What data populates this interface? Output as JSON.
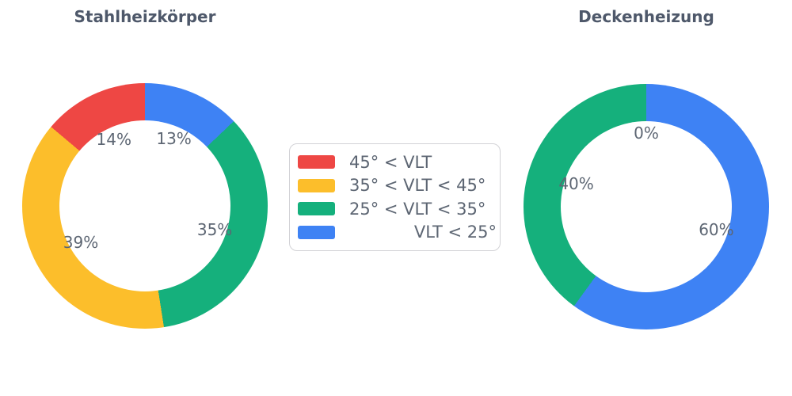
{
  "page": {
    "background": "#ffffff"
  },
  "style": {
    "title_color": "#4e586a",
    "label_color": "#5d6673",
    "legend_border_color": "#d2d2d6",
    "legend_background": "#ffffff"
  },
  "chart_data": [
    {
      "type": "pie",
      "subtype": "donut",
      "title": "Stahlheizkörper",
      "categories": [
        "45° < VLT",
        "35° < VLT < 45°",
        "25° < VLT < 35°",
        "VLT < 25°"
      ],
      "values": [
        14,
        39,
        35,
        13
      ],
      "value_labels": [
        "14%",
        "39%",
        "35%",
        "13%"
      ],
      "colors": [
        "#ee4744",
        "#fcbe2b",
        "#15b07c",
        "#3e82f4"
      ],
      "start_angle": 90,
      "direction": "counterclockwise",
      "donut_hole_ratio": 0.7,
      "legend_position": "center-between-charts"
    },
    {
      "type": "pie",
      "subtype": "donut",
      "title": "Deckenheizung",
      "categories": [
        "45° < VLT",
        "35° < VLT < 45°",
        "25° < VLT < 35°",
        "VLT < 25°"
      ],
      "values": [
        0,
        0,
        40,
        60
      ],
      "value_labels": [
        "",
        "0%",
        "40%",
        "60%"
      ],
      "colors": [
        "#ee4744",
        "#fcbe2b",
        "#15b07c",
        "#3e82f4"
      ],
      "start_angle": 90,
      "direction": "counterclockwise",
      "donut_hole_ratio": 0.7,
      "legend_position": "center-between-charts"
    }
  ],
  "legend": {
    "entries": [
      {
        "label": "45° < VLT",
        "color": "#ee4744"
      },
      {
        "label": "35° < VLT < 45°",
        "color": "#fcbe2b"
      },
      {
        "label": "25° < VLT < 35°",
        "color": "#15b07c"
      },
      {
        "label": "VLT < 25°",
        "color": "#3e82f4"
      }
    ]
  }
}
